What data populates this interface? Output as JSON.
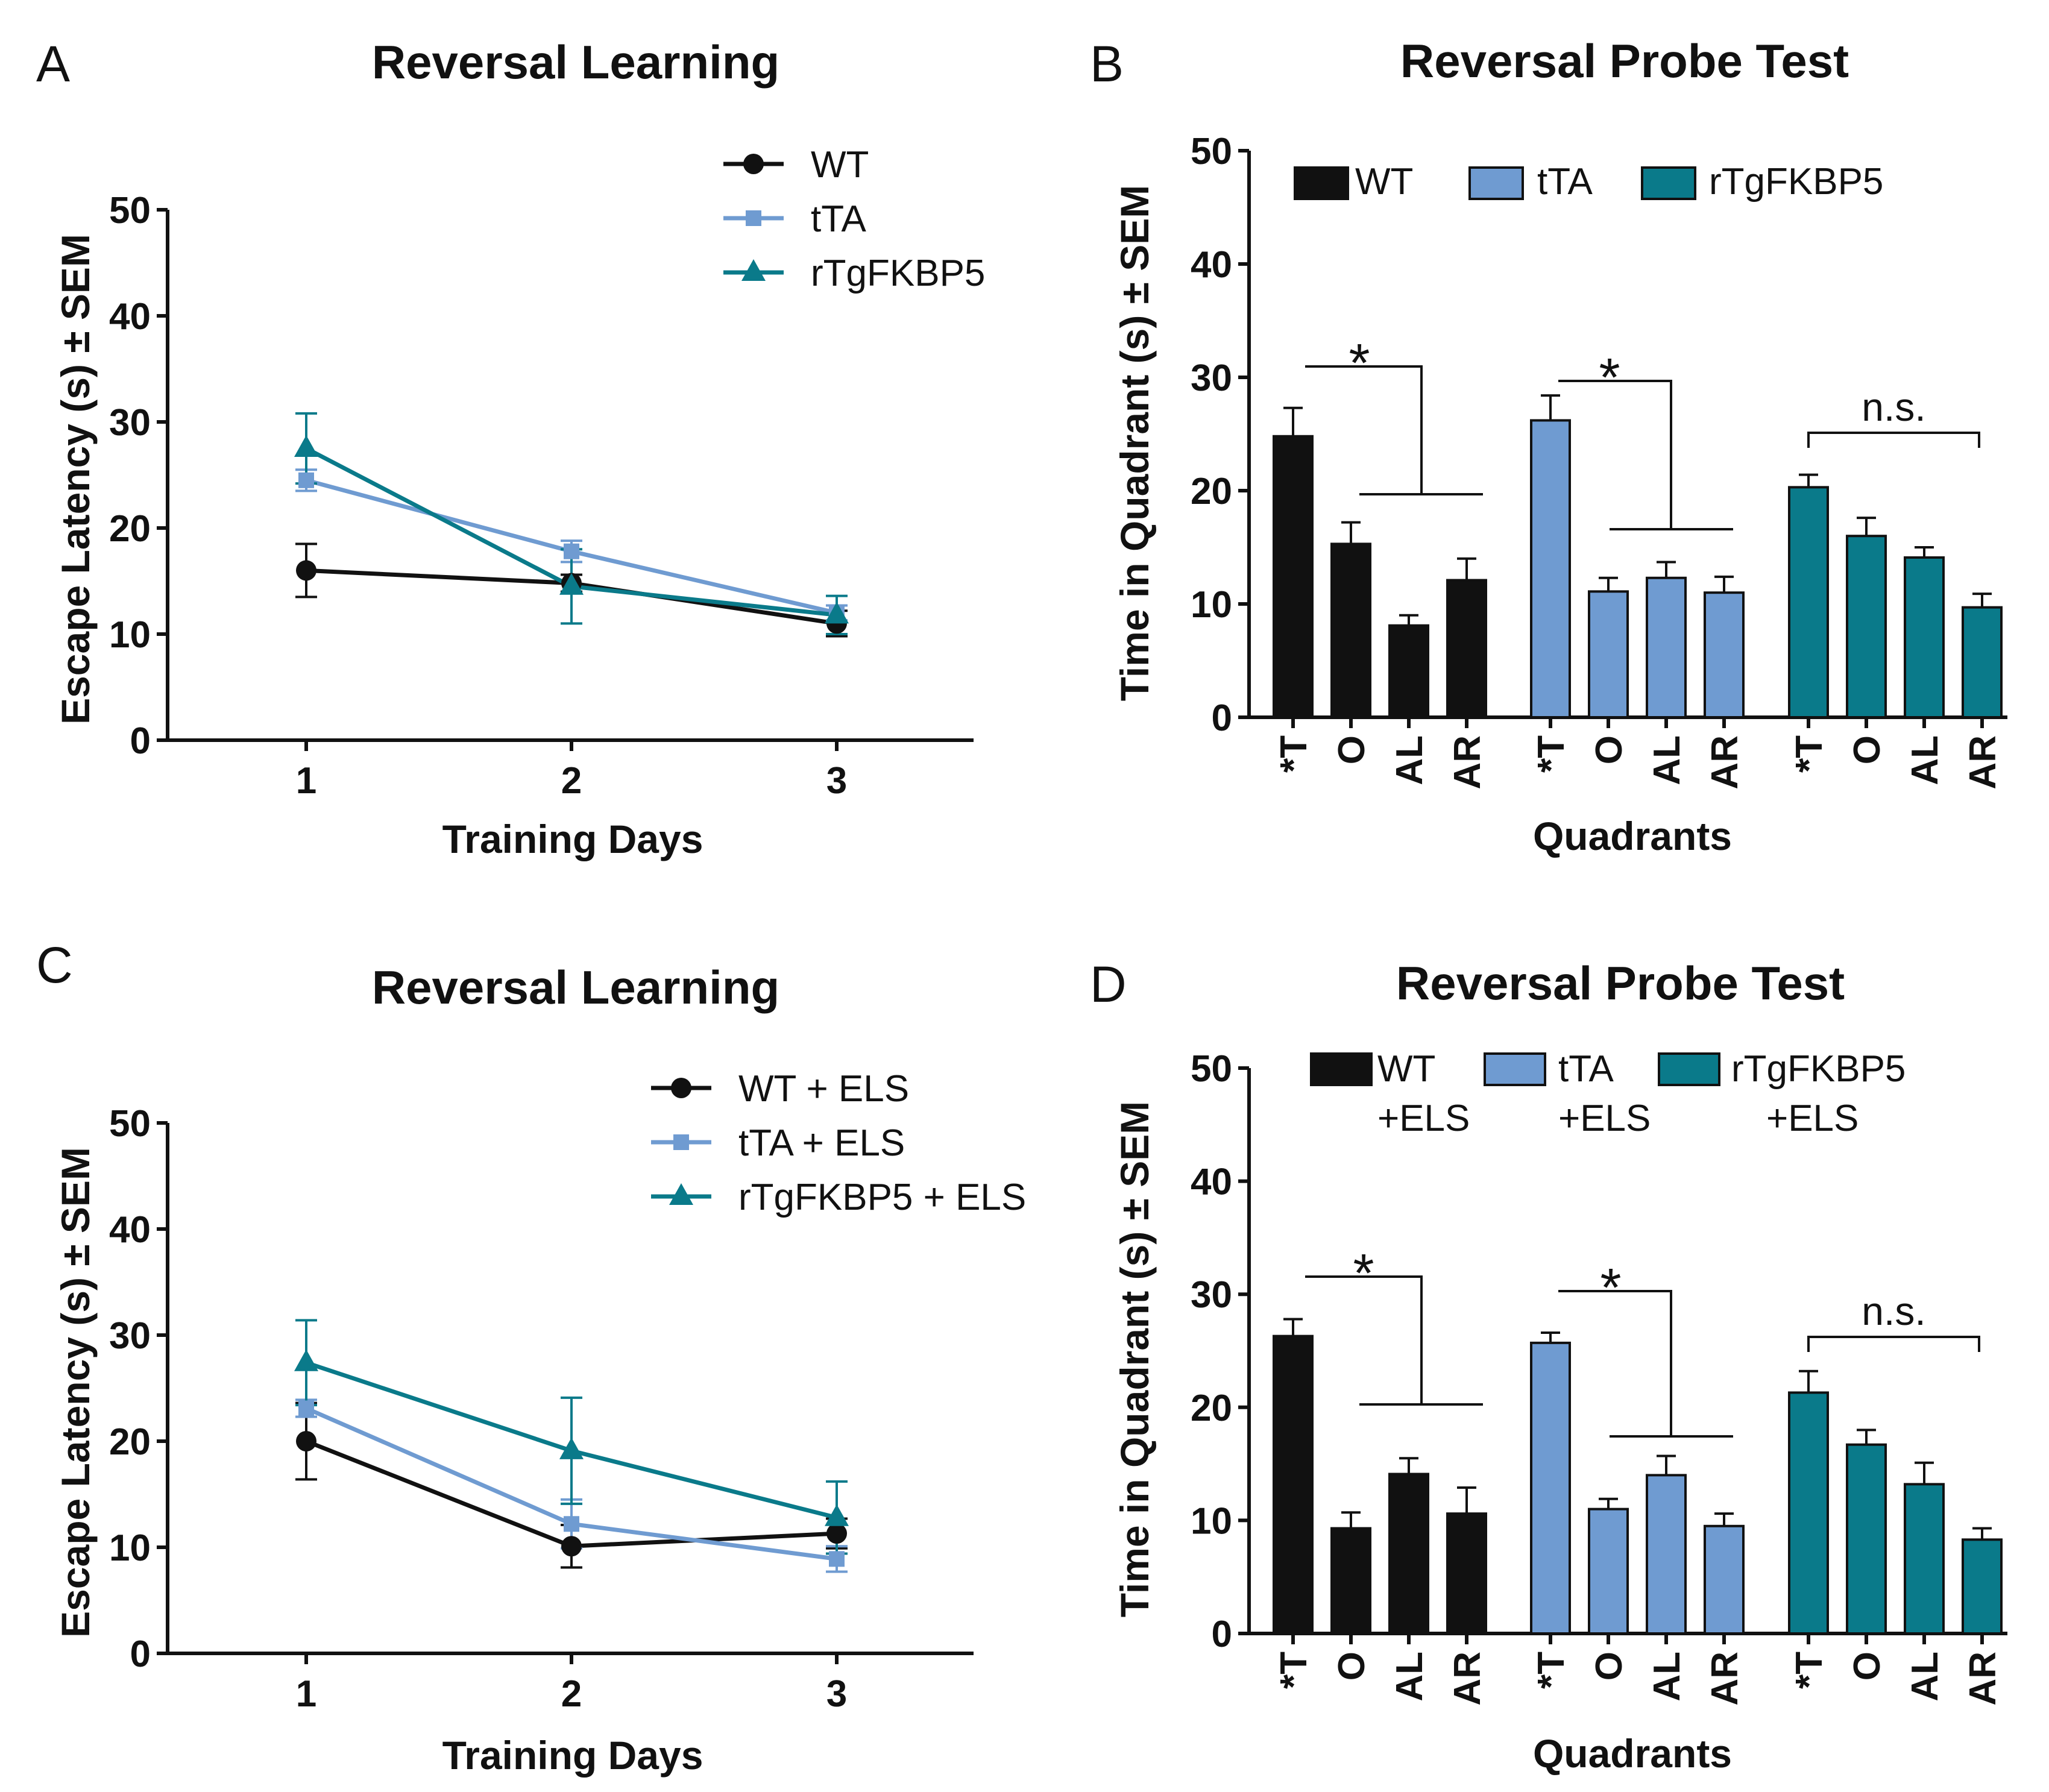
{
  "figure": {
    "colors": {
      "wt": "#111111",
      "tta": "#6f9bd1",
      "rtg": "#0a7a8a",
      "ink": "#111111"
    },
    "panels": {
      "A": {
        "letter": "A",
        "title": "Reversal Learning",
        "ylabel": "Escape Latency (s) ± SEM",
        "xlabel": "Training Days"
      },
      "B": {
        "letter": "B",
        "title": "Reversal Probe Test",
        "ylabel": "Time in Quadrant (s) ± SEM",
        "xlabel": "Quadrants"
      },
      "C": {
        "letter": "C",
        "title": "Reversal Learning",
        "ylabel": "Escape Latency (s) ± SEM",
        "xlabel": "Training Days"
      },
      "D": {
        "letter": "D",
        "title": "Reversal Probe Test",
        "ylabel": "Time in Quadrant (s) ± SEM",
        "xlabel": "Quadrants"
      }
    },
    "legend_B": {
      "wt": "WT",
      "tta": "tTA",
      "rtg": "rTgFKBP5"
    },
    "legend_D": {
      "wt1": "WT",
      "wt2": "+ELS",
      "tta1": "tTA",
      "tta2": "+ELS",
      "rtg1": "rTgFKBP5",
      "rtg2": "+ELS"
    },
    "annotations": {
      "star": "*",
      "ns": "n.s."
    }
  },
  "chart_data": [
    {
      "panel": "A",
      "type": "line",
      "title": "Reversal Learning",
      "xlabel": "Training Days",
      "ylabel": "Escape Latency (s) ± SEM",
      "x": [
        1,
        2,
        3
      ],
      "x_tick_labels": [
        "1",
        "2",
        "3"
      ],
      "ylim": [
        0,
        50
      ],
      "y_ticks": [
        "0",
        "10",
        "20",
        "30",
        "40",
        "50"
      ],
      "legend_position": "top-right",
      "series": [
        {
          "name": "WT",
          "marker": "circle",
          "values": [
            16,
            14.8,
            11
          ],
          "sem": [
            2.5,
            0.8,
            1.2
          ]
        },
        {
          "name": "tTA",
          "marker": "square",
          "values": [
            24.5,
            17.8,
            12
          ],
          "sem": [
            1.0,
            1.0,
            0.7
          ]
        },
        {
          "name": "rTgFKBP5",
          "marker": "triangle",
          "values": [
            27.5,
            14.5,
            11.8
          ],
          "sem": [
            3.3,
            3.5,
            1.8
          ]
        }
      ]
    },
    {
      "panel": "B",
      "type": "bar",
      "title": "Reversal Probe Test",
      "xlabel": "Quadrants",
      "ylabel": "Time in Quadrant (s) ± SEM",
      "categories": [
        "*T",
        "O",
        "AL",
        "AR"
      ],
      "ylim": [
        0,
        50
      ],
      "y_ticks": [
        "0",
        "10",
        "20",
        "30",
        "40",
        "50"
      ],
      "legend_position": "top",
      "series": [
        {
          "name": "WT",
          "values": [
            24.8,
            15.3,
            8.1,
            12.1
          ],
          "sem": [
            2.5,
            1.9,
            0.9,
            1.9
          ]
        },
        {
          "name": "tTA",
          "values": [
            26.2,
            11.1,
            12.3,
            11.0
          ],
          "sem": [
            2.2,
            1.2,
            1.4,
            1.4
          ]
        },
        {
          "name": "rTgFKBP5",
          "values": [
            20.3,
            16.0,
            14.1,
            9.7
          ],
          "sem": [
            1.1,
            1.6,
            0.9,
            1.2
          ]
        }
      ],
      "significance": [
        "*",
        "*",
        "n.s."
      ]
    },
    {
      "panel": "C",
      "type": "line",
      "title": "Reversal Learning",
      "xlabel": "Training Days",
      "ylabel": "Escape Latency (s) ± SEM",
      "x": [
        1,
        2,
        3
      ],
      "x_tick_labels": [
        "1",
        "2",
        "3"
      ],
      "ylim": [
        0,
        50
      ],
      "y_ticks": [
        "0",
        "10",
        "20",
        "30",
        "40",
        "50"
      ],
      "legend_position": "top-right",
      "series": [
        {
          "name": "WT + ELS",
          "marker": "circle",
          "values": [
            20.0,
            10.1,
            11.3
          ],
          "sem": [
            3.6,
            2.0,
            1.4
          ]
        },
        {
          "name": "tTA + ELS",
          "marker": "square",
          "values": [
            23.1,
            12.2,
            8.9
          ],
          "sem": [
            0.8,
            2.3,
            1.2
          ]
        },
        {
          "name": "rTgFKBP5 + ELS",
          "marker": "triangle",
          "values": [
            27.4,
            19.1,
            12.8
          ],
          "sem": [
            4.0,
            5.0,
            3.4
          ]
        }
      ]
    },
    {
      "panel": "D",
      "type": "bar",
      "title": "Reversal Probe Test",
      "xlabel": "Quadrants",
      "ylabel": "Time in Quadrant (s) ± SEM",
      "categories": [
        "*T",
        "O",
        "AL",
        "AR"
      ],
      "ylim": [
        0,
        50
      ],
      "y_ticks": [
        "0",
        "10",
        "20",
        "30",
        "40",
        "50"
      ],
      "legend_position": "top",
      "series": [
        {
          "name": "WT +ELS",
          "values": [
            26.3,
            9.3,
            14.1,
            10.6
          ],
          "sem": [
            1.5,
            1.4,
            1.4,
            2.3
          ]
        },
        {
          "name": "tTA +ELS",
          "values": [
            25.7,
            11.0,
            14.0,
            9.5
          ],
          "sem": [
            0.9,
            0.9,
            1.7,
            1.1
          ]
        },
        {
          "name": "rTgFKBP5 +ELS",
          "values": [
            21.3,
            16.7,
            13.2,
            8.3
          ],
          "sem": [
            1.9,
            1.3,
            1.9,
            1.0
          ]
        }
      ],
      "significance": [
        "*",
        "*",
        "n.s."
      ]
    }
  ]
}
